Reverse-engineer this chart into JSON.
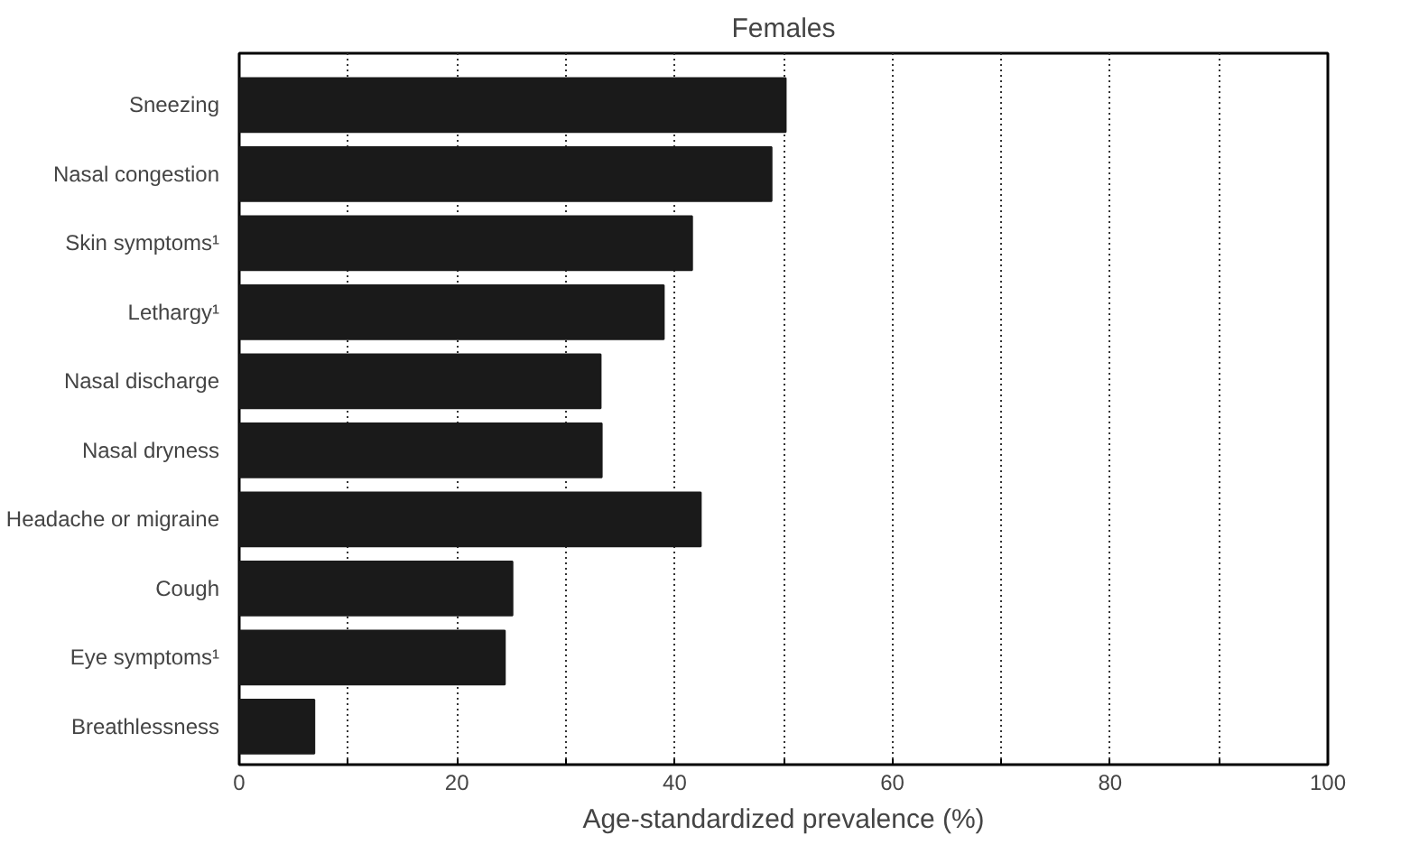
{
  "chart_data": {
    "type": "bar",
    "orientation": "horizontal",
    "title": "Females",
    "xlabel": "Age-standardized prevalence (%)",
    "categories": [
      "Sneezing",
      "Nasal congestion",
      "Skin symptoms¹",
      "Lethargy¹",
      "Nasal discharge",
      "Nasal dryness",
      "Headache or migraine",
      "Cough",
      "Eye symptoms¹",
      "Breathlessness"
    ],
    "values": [
      50.2,
      48.9,
      41.6,
      39.0,
      33.2,
      33.3,
      42.4,
      25.1,
      24.4,
      6.9
    ],
    "color": "#1a1a1a",
    "xlim": [
      0,
      100
    ],
    "xticks": [
      0,
      {
        "value": 10,
        "label": null
      },
      20,
      {
        "value": 30,
        "label": null
      },
      40,
      {
        "value": 50,
        "label": null
      },
      60,
      {
        "value": 70,
        "label": null
      },
      80,
      {
        "value": 90,
        "label": null
      },
      100
    ],
    "grid": "x"
  }
}
